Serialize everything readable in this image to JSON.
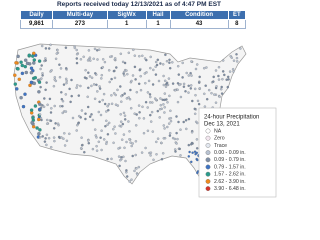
{
  "header": {
    "title": "Reports received today 12/13/2021 as of 4:47 PM EST"
  },
  "table": {
    "headers": [
      "Daily",
      "Multi-day",
      "SigWx",
      "Hail",
      "Condition",
      "ET"
    ],
    "rows": [
      [
        "9,861",
        "273",
        "1",
        "1",
        "43",
        "8"
      ]
    ]
  },
  "legend": {
    "title": "24-hour Precipitation",
    "subtitle": "Dec 13, 2021",
    "items": [
      {
        "label": "NA",
        "color": "#ffffff"
      },
      {
        "label": "Zero",
        "color": "#f3e6ef"
      },
      {
        "label": "Trace",
        "color": "#e3e8f0"
      },
      {
        "label": "0.00 - 0.09 in.",
        "color": "#b9c3d2"
      },
      {
        "label": "0.09 - 0.79 in.",
        "color": "#7f8fa6"
      },
      {
        "label": "0.79 - 1.57 in.",
        "color": "#3f74c4"
      },
      {
        "label": "1.57 - 2.62 in.",
        "color": "#2a9b8c"
      },
      {
        "label": "2.62 - 3.90 in.",
        "color": "#f08a1c"
      },
      {
        "label": "3.90 - 6.48 in.",
        "color": "#d8322a"
      }
    ]
  }
}
